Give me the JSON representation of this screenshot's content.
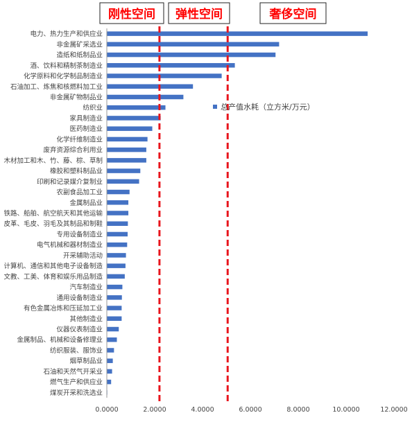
{
  "chart_data": {
    "type": "bar",
    "orientation": "horizontal",
    "categories": [
      "电力、热力生产和供应业",
      "非金属矿采选业",
      "造纸和纸制品业",
      "酒、饮料和精制茶制造业",
      "化学原料和化学制品制造业",
      "石油加工、炼焦和核燃料加工业",
      "非金属矿物制品业",
      "纺织业",
      "家具制造业",
      "医药制造业",
      "化学纤维制造业",
      "废弃资源综合利用业",
      "木材加工和木、竹、藤、棕、草制",
      "橡胶和塑料制品业",
      "印刷和记录媒介复制业",
      "农副食品加工业",
      "金属制品业",
      "铁路、船舶、航空航天和其他运输",
      "皮革、毛皮、羽毛及其制品和制鞋",
      "专用设备制造业",
      "电气机械和器材制造业",
      "开采辅助活动",
      "计算机、通信和其他电子设备制造",
      "文教、工美、体育和娱乐用品制造",
      "汽车制造业",
      "通用设备制造业",
      "有色金属冶炼和压延加工业",
      "其他制造业",
      "仪器仪表制造业",
      "金属制品、机械和设备修理业",
      "纺织服装、服饰业",
      "烟草制品业",
      "石油和天然气开采业",
      "燃气生产和供应业",
      "煤炭开采和洗选业"
    ],
    "series": [
      {
        "name": "总产值水耗（立方米/万元）",
        "values": [
          10.9,
          7.2,
          7.05,
          5.35,
          4.8,
          3.6,
          3.2,
          2.45,
          2.25,
          1.9,
          1.7,
          1.65,
          1.65,
          1.4,
          1.35,
          0.95,
          0.9,
          0.9,
          0.88,
          0.87,
          0.85,
          0.8,
          0.78,
          0.75,
          0.65,
          0.63,
          0.62,
          0.62,
          0.5,
          0.42,
          0.3,
          0.25,
          0.22,
          0.18,
          0.02
        ],
        "color": "#4472c4"
      }
    ],
    "xlim": [
      0,
      12
    ],
    "xticks": [
      "0.0000",
      "2.0000",
      "4.0000",
      "6.0000",
      "8.0000",
      "10.0000",
      "12.0000"
    ],
    "xtick_values": [
      0,
      2,
      4,
      6,
      8,
      10,
      12
    ],
    "legend_position": "right-middle",
    "grid": false,
    "thresholds": [
      {
        "value": 2.2,
        "color": "#e8141c"
      },
      {
        "value": 5.05,
        "color": "#e8141c"
      }
    ],
    "zones": [
      {
        "label": "刚性空间"
      },
      {
        "label": "弹性空间"
      },
      {
        "label": "奢侈空间"
      }
    ]
  }
}
